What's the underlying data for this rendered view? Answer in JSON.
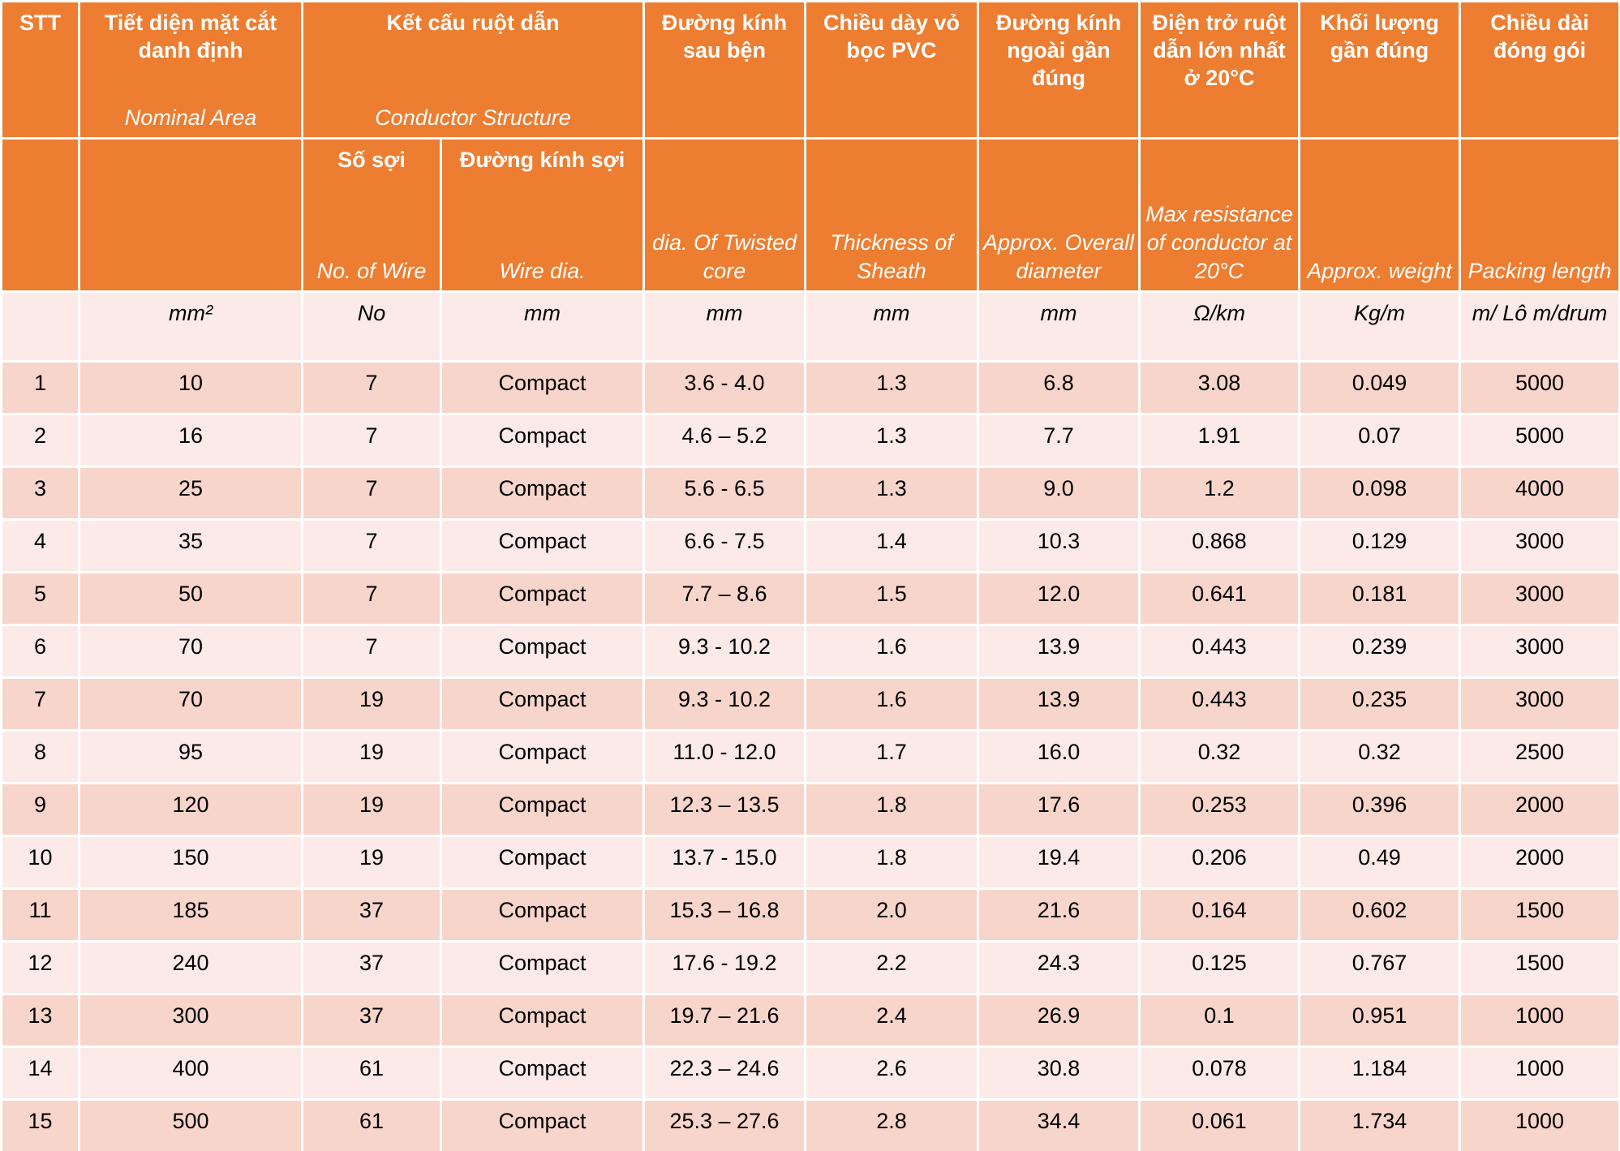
{
  "header_row_1": [
    {
      "vi": "STT"
    },
    {
      "vi": "Tiết diện mặt cắt danh định",
      "en": "Nominal Area"
    },
    {
      "vi": "Kết cấu ruột dẫn",
      "en": "Conductor Structure"
    },
    {
      "vi": "Đường kính sau bện"
    },
    {
      "vi": "Chiều dày vỏ bọc PVC"
    },
    {
      "vi": "Đường kính ngoài gần đúng"
    },
    {
      "vi": "Điện trở ruột dẫn lớn nhất ở 20°C"
    },
    {
      "vi": "Khối lượng gần đúng"
    },
    {
      "vi": "Chiều dài đóng gói"
    }
  ],
  "header_row_2": [
    {
      "vi": "Số sợi",
      "en": "No. of Wire"
    },
    {
      "vi": "Đường kính sợi",
      "en": "Wire dia."
    },
    {
      "en": "dia. Of Twisted core"
    },
    {
      "en": "Thickness of Sheath"
    },
    {
      "en": "Approx. Overall diameter"
    },
    {
      "en": "Max resistance of conductor at 20°C"
    },
    {
      "en": "Approx. weight"
    },
    {
      "en": "Packing length"
    }
  ],
  "units": [
    "mm²",
    "No",
    "mm",
    "mm",
    "mm",
    "mm",
    "Ω/km",
    "Kg/m",
    "m/ Lô m/drum"
  ],
  "rows": [
    [
      "1",
      "10",
      "7",
      "Compact",
      "3.6 - 4.0",
      "1.3",
      "6.8",
      "3.08",
      "0.049",
      "5000"
    ],
    [
      "2",
      "16",
      "7",
      "Compact",
      "4.6 – 5.2",
      "1.3",
      "7.7",
      "1.91",
      "0.07",
      "5000"
    ],
    [
      "3",
      "25",
      "7",
      "Compact",
      "5.6 - 6.5",
      "1.3",
      "9.0",
      "1.2",
      "0.098",
      "4000"
    ],
    [
      "4",
      "35",
      "7",
      "Compact",
      "6.6 - 7.5",
      "1.4",
      "10.3",
      "0.868",
      "0.129",
      "3000"
    ],
    [
      "5",
      "50",
      "7",
      "Compact",
      "7.7 – 8.6",
      "1.5",
      "12.0",
      "0.641",
      "0.181",
      "3000"
    ],
    [
      "6",
      "70",
      "7",
      "Compact",
      "9.3 - 10.2",
      "1.6",
      "13.9",
      "0.443",
      "0.239",
      "3000"
    ],
    [
      "7",
      "70",
      "19",
      "Compact",
      "9.3 - 10.2",
      "1.6",
      "13.9",
      "0.443",
      "0.235",
      "3000"
    ],
    [
      "8",
      "95",
      "19",
      "Compact",
      "11.0 - 12.0",
      "1.7",
      "16.0",
      "0.32",
      "0.32",
      "2500"
    ],
    [
      "9",
      "120",
      "19",
      "Compact",
      "12.3 – 13.5",
      "1.8",
      "17.6",
      "0.253",
      "0.396",
      "2000"
    ],
    [
      "10",
      "150",
      "19",
      "Compact",
      "13.7 - 15.0",
      "1.8",
      "19.4",
      "0.206",
      "0.49",
      "2000"
    ],
    [
      "11",
      "185",
      "37",
      "Compact",
      "15.3 – 16.8",
      "2.0",
      "21.6",
      "0.164",
      "0.602",
      "1500"
    ],
    [
      "12",
      "240",
      "37",
      "Compact",
      "17.6 - 19.2",
      "2.2",
      "24.3",
      "0.125",
      "0.767",
      "1500"
    ],
    [
      "13",
      "300",
      "37",
      "Compact",
      "19.7 – 21.6",
      "2.4",
      "26.9",
      "0.1",
      "0.951",
      "1000"
    ],
    [
      "14",
      "400",
      "61",
      "Compact",
      "22.3 – 24.6",
      "2.6",
      "30.8",
      "0.078",
      "1.184",
      "1000"
    ],
    [
      "15",
      "500",
      "61",
      "Compact",
      "25.3 – 27.6",
      "2.8",
      "34.4",
      "0.061",
      "1.734",
      "1000"
    ]
  ]
}
